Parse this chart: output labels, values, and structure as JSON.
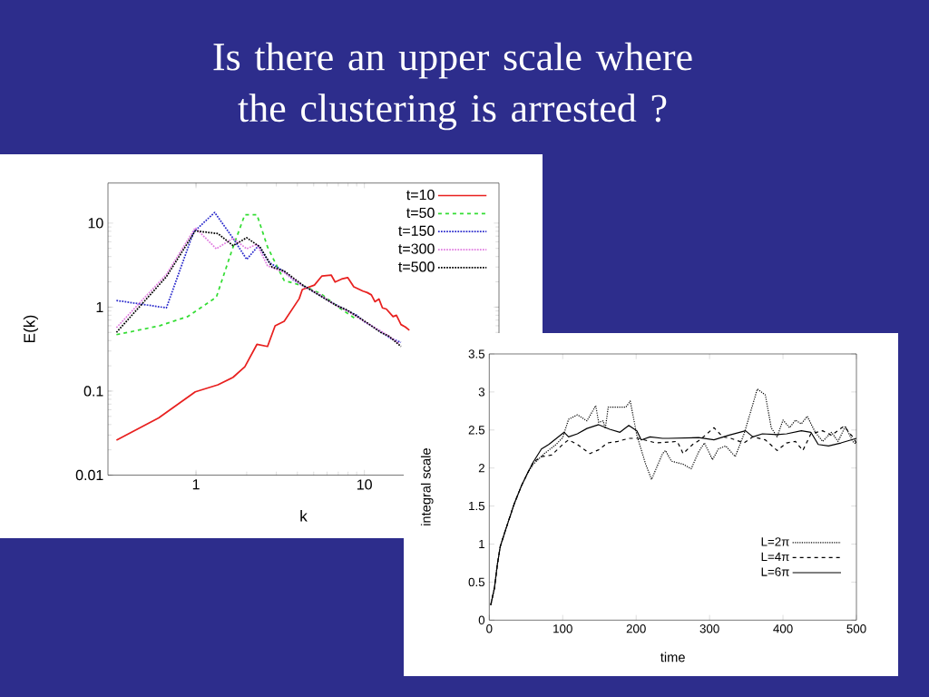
{
  "chart_data": [
    {
      "type": "line",
      "title": "Is there an upper scale where the clustering is arrested ?",
      "xlabel": "k",
      "ylabel": "E(k)",
      "log": "xy",
      "xlim": [
        0.3,
        63
      ],
      "ylim": [
        0.01,
        30
      ],
      "xticks": [
        1,
        10
      ],
      "yticks": [
        0.01,
        0.1,
        1,
        10
      ],
      "legend": "top right",
      "series": [
        {
          "name": "t=10",
          "color": "#e8201f",
          "line_style": "solid",
          "x": [
            0.337,
            0.6,
            0.99,
            1.35,
            1.66,
            1.95,
            2.3,
            2.66,
            2.95,
            3.34,
            4.1,
            4.28,
            5.05,
            5.6,
            6.35,
            6.7,
            7.33,
            7.96,
            8.65,
            9.8,
            10.4,
            11.0,
            11.55,
            12.2,
            12.8,
            13.5,
            14.8,
            15.5,
            16.5,
            17.5,
            18.5
          ],
          "values": [
            0.026,
            0.048,
            0.098,
            0.119,
            0.146,
            0.195,
            0.36,
            0.34,
            0.6,
            0.68,
            1.26,
            1.62,
            1.83,
            2.35,
            2.41,
            1.99,
            2.16,
            2.25,
            1.75,
            1.55,
            1.49,
            1.4,
            1.16,
            1.25,
            0.98,
            0.95,
            0.77,
            0.8,
            0.62,
            0.58,
            0.53
          ]
        },
        {
          "name": "t=50",
          "color": "#33dd33",
          "line_style": "dashed",
          "x": [
            0.337,
            0.61,
            0.89,
            1.32,
            1.66,
            1.95,
            2.3,
            2.66,
            2.95,
            3.34,
            4.3,
            5.5,
            7.0,
            9.0
          ],
          "values": [
            0.47,
            0.6,
            0.77,
            1.31,
            5.2,
            12.6,
            12.6,
            5.2,
            3.4,
            2.07,
            1.8,
            1.45,
            1.0,
            0.71
          ]
        },
        {
          "name": "t=150",
          "color": "#2a2acc",
          "line_style": "dotted",
          "x": [
            0.337,
            0.667,
            0.967,
            1.29,
            1.66,
            2.0,
            2.35,
            2.72,
            3.33,
            3.8,
            4.27,
            4.8,
            5.48,
            6.3,
            7.9,
            9.0,
            10.0,
            11.0,
            12.5,
            13.3,
            14.5,
            16.5
          ],
          "values": [
            1.2,
            0.98,
            7.8,
            13.4,
            6.6,
            3.7,
            5.4,
            3.4,
            2.66,
            2.1,
            1.83,
            1.6,
            1.37,
            1.15,
            0.91,
            0.8,
            0.67,
            0.6,
            0.51,
            0.47,
            0.42,
            0.38
          ]
        },
        {
          "name": "t=300",
          "color": "#e07be0",
          "line_style": "dotted",
          "x": [
            0.337,
            0.667,
            0.99,
            1.32,
            1.66,
            2.0,
            2.3,
            2.66,
            3.33,
            4.27,
            5.48,
            6.5,
            7.9,
            9.5,
            11.0,
            12.5,
            14.0,
            16.0
          ],
          "values": [
            0.57,
            2.45,
            8.8,
            4.95,
            6.6,
            4.95,
            5.6,
            3.1,
            2.6,
            1.8,
            1.4,
            1.1,
            0.9,
            0.72,
            0.6,
            0.52,
            0.45,
            0.37
          ]
        },
        {
          "name": "t=500",
          "color": "#000000",
          "line_style": "dotted",
          "x": [
            0.337,
            0.667,
            0.99,
            1.35,
            1.66,
            2.0,
            2.4,
            2.83,
            3.33,
            4.27,
            5.48,
            6.8,
            7.9,
            9.3,
            10.5,
            12.5,
            14.0,
            16.5
          ],
          "values": [
            0.5,
            2.3,
            8.1,
            7.5,
            5.4,
            6.7,
            5.2,
            3.0,
            2.7,
            1.85,
            1.36,
            1.05,
            0.92,
            0.75,
            0.64,
            0.5,
            0.45,
            0.34
          ]
        }
      ]
    },
    {
      "type": "line",
      "xlabel": "time",
      "ylabel": "integral scale",
      "xlim": [
        0,
        500
      ],
      "ylim": [
        0,
        3.5
      ],
      "xticks": [
        0,
        100,
        200,
        300,
        400,
        500
      ],
      "yticks": [
        0,
        0.5,
        1,
        1.5,
        2,
        2.5,
        3,
        3.5
      ],
      "legend": "bottom right",
      "series": [
        {
          "name": "L=2π",
          "color": "#000000",
          "line_style": "dotted",
          "x": [
            2,
            7,
            11,
            15,
            23,
            34,
            44,
            52,
            60,
            75,
            91,
            100,
            108,
            120,
            133,
            145,
            149,
            155,
            158,
            162,
            186,
            192,
            201,
            213,
            221,
            236,
            240,
            248,
            264,
            275,
            285,
            293,
            304,
            312,
            322,
            335,
            347,
            359,
            365,
            376,
            384,
            392,
            400,
            409,
            417,
            425,
            433,
            444,
            454,
            466,
            475,
            485,
            495,
            500
          ],
          "values": [
            0.2,
            0.42,
            0.73,
            0.97,
            1.21,
            1.53,
            1.77,
            1.93,
            2.05,
            2.19,
            2.31,
            2.4,
            2.64,
            2.7,
            2.62,
            2.82,
            2.6,
            2.62,
            2.52,
            2.8,
            2.8,
            2.88,
            2.43,
            2.05,
            1.85,
            2.19,
            2.23,
            2.09,
            2.05,
            1.99,
            2.21,
            2.33,
            2.11,
            2.25,
            2.29,
            2.15,
            2.45,
            2.84,
            3.04,
            2.96,
            2.53,
            2.41,
            2.63,
            2.53,
            2.63,
            2.58,
            2.68,
            2.47,
            2.35,
            2.47,
            2.35,
            2.55,
            2.35,
            2.31
          ]
        },
        {
          "name": "L=4π",
          "color": "#000000",
          "line_style": "dashed",
          "x": [
            2,
            7,
            11,
            15,
            23,
            34,
            44,
            52,
            60,
            71,
            85,
            100,
            108,
            120,
            137,
            149,
            161,
            175,
            190,
            203,
            227,
            256,
            264,
            277,
            287,
            306,
            318,
            329,
            347,
            359,
            376,
            392,
            405,
            417,
            427,
            438,
            454,
            466,
            483,
            495,
            500
          ],
          "values": [
            0.2,
            0.42,
            0.73,
            0.97,
            1.21,
            1.53,
            1.77,
            1.93,
            2.08,
            2.15,
            2.17,
            2.31,
            2.37,
            2.31,
            2.19,
            2.24,
            2.33,
            2.35,
            2.39,
            2.39,
            2.33,
            2.35,
            2.19,
            2.31,
            2.37,
            2.53,
            2.41,
            2.39,
            2.33,
            2.41,
            2.37,
            2.23,
            2.33,
            2.35,
            2.23,
            2.45,
            2.49,
            2.43,
            2.55,
            2.41,
            2.33
          ]
        },
        {
          "name": "L=6π",
          "color": "#000000",
          "line_style": "solid",
          "x": [
            2,
            7,
            11,
            15,
            23,
            34,
            44,
            52,
            60,
            71,
            81,
            102,
            108,
            120,
            133,
            149,
            164,
            178,
            190,
            201,
            207,
            219,
            236,
            244,
            285,
            306,
            326,
            349,
            359,
            372,
            392,
            405,
            425,
            438,
            448,
            462,
            479,
            500
          ],
          "values": [
            0.2,
            0.42,
            0.73,
            0.97,
            1.21,
            1.53,
            1.77,
            1.93,
            2.08,
            2.25,
            2.31,
            2.47,
            2.41,
            2.45,
            2.52,
            2.57,
            2.51,
            2.47,
            2.56,
            2.49,
            2.37,
            2.41,
            2.39,
            2.39,
            2.4,
            2.37,
            2.43,
            2.49,
            2.41,
            2.45,
            2.44,
            2.45,
            2.49,
            2.47,
            2.31,
            2.29,
            2.33,
            2.39
          ]
        }
      ]
    }
  ]
}
